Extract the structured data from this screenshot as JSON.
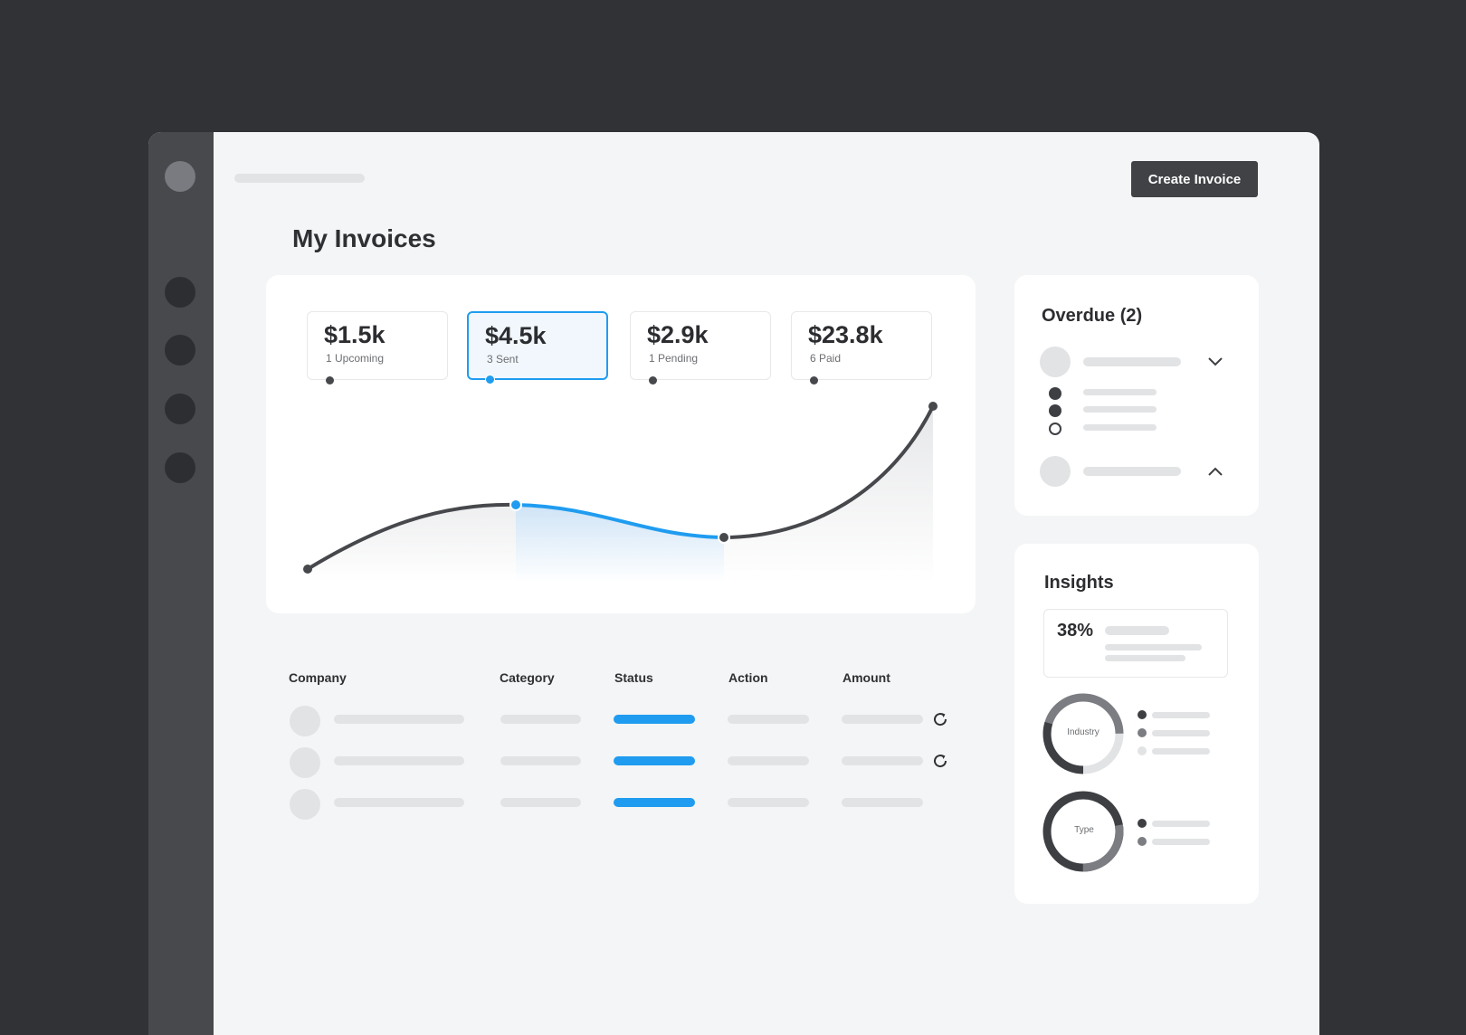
{
  "header": {
    "create_button_label": "Create Invoice",
    "page_title": "My Invoices"
  },
  "stats": [
    {
      "value": "$1.5k",
      "label": "1 Upcoming"
    },
    {
      "value": "$4.5k",
      "label": "3 Sent"
    },
    {
      "value": "$2.9k",
      "label": "1 Pending"
    },
    {
      "value": "$23.8k",
      "label": "6 Paid"
    }
  ],
  "table": {
    "columns": [
      "Company",
      "Category",
      "Status",
      "Action",
      "Amount"
    ]
  },
  "overdue": {
    "title": "Overdue (2)"
  },
  "insights": {
    "title": "Insights",
    "percent": "38%",
    "donuts": [
      {
        "label": "Industry"
      },
      {
        "label": "Type"
      }
    ]
  },
  "colors": {
    "accent": "#1f9cf0",
    "dark": "#404246",
    "background": "#313236",
    "sidebar": "#47494d"
  }
}
